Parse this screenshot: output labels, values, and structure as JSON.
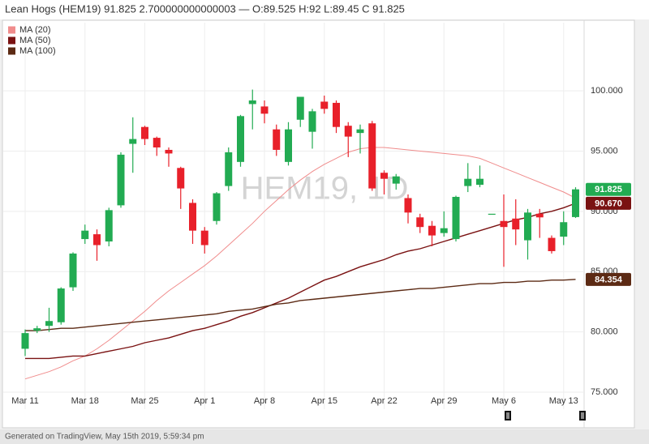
{
  "chart_data": {
    "type": "candlestick",
    "title": "Lean Hogs (HEM19) 91.825 2.700000000000003 — O:89.525 H:92 L:89.45 C 91.825",
    "watermark": "HEM19, 1D",
    "footer": "Generated on TradingView, May 15th 2019, 5:59:34 pm",
    "categories": [
      "Mar 11",
      null,
      null,
      null,
      null,
      "Mar 18",
      null,
      null,
      null,
      null,
      "Mar 25",
      null,
      null,
      null,
      null,
      "Apr 1",
      null,
      null,
      null,
      null,
      "Apr 8",
      null,
      null,
      null,
      null,
      "Apr 15",
      null,
      null,
      null,
      null,
      "Apr 22",
      null,
      null,
      null,
      null,
      "Apr 29",
      null,
      null,
      null,
      null,
      "May 6",
      null,
      null,
      null,
      null,
      "May 13",
      null
    ],
    "ohlc": {
      "up_color": "#22ab52",
      "down_color": "#e8202a",
      "open": [
        78.6,
        80.1,
        80.5,
        80.8,
        83.7,
        87.7,
        88.1,
        87.5,
        90.5,
        95.6,
        97.0,
        96.1,
        95.1,
        93.6,
        90.7,
        88.4,
        89.2,
        92.1,
        94.1,
        98.9,
        98.7,
        96.8,
        94.1,
        97.6,
        96.6,
        99.1,
        99.0,
        97.1,
        96.5,
        97.3,
        93.2,
        92.3,
        91.1,
        89.5,
        88.8,
        88.2,
        87.7,
        92.1,
        92.2,
        89.8,
        89.2,
        89.4,
        87.6,
        89.8,
        87.8,
        87.9,
        89.525
      ],
      "high": [
        80.2,
        80.5,
        82.0,
        83.7,
        86.6,
        88.9,
        88.5,
        90.3,
        94.9,
        97.8,
        97.1,
        96.2,
        95.3,
        93.7,
        91.0,
        88.7,
        91.6,
        95.3,
        98.0,
        100.1,
        99.2,
        97.2,
        97.4,
        99.5,
        98.5,
        99.6,
        99.2,
        97.4,
        97.2,
        97.5,
        93.4,
        93.1,
        91.4,
        89.8,
        89.2,
        90.0,
        91.3,
        94.0,
        93.8,
        89.8,
        91.4,
        91.0,
        90.2,
        90.2,
        88.0,
        90.0,
        92
      ],
      "low": [
        78.0,
        79.9,
        80.0,
        80.6,
        83.4,
        87.3,
        85.9,
        87.1,
        90.3,
        93.2,
        95.5,
        94.6,
        93.7,
        90.2,
        87.3,
        86.5,
        88.9,
        91.7,
        93.7,
        96.8,
        97.3,
        94.6,
        93.8,
        97.0,
        95.2,
        98.1,
        96.5,
        94.5,
        94.8,
        91.7,
        91.4,
        91.8,
        89.0,
        88.2,
        87.1,
        87.9,
        87.5,
        91.6,
        92.0,
        89.8,
        85.4,
        87.2,
        86.0,
        87.8,
        86.5,
        87.2,
        89.45
      ],
      "close": [
        79.9,
        80.3,
        80.9,
        83.6,
        86.5,
        88.4,
        87.2,
        90.1,
        94.7,
        96.0,
        96.0,
        95.3,
        94.8,
        91.9,
        88.4,
        87.2,
        91.5,
        94.9,
        97.9,
        99.2,
        98.1,
        95.1,
        96.8,
        99.5,
        98.3,
        98.5,
        97.0,
        96.2,
        96.8,
        91.9,
        92.7,
        92.9,
        89.9,
        88.7,
        88.0,
        88.6,
        91.2,
        92.7,
        92.7,
        89.8,
        88.7,
        88.5,
        89.9,
        89.5,
        86.7,
        89.1,
        91.825
      ]
    },
    "series": [
      {
        "name": "MA (20)",
        "color": "#f08c8c",
        "values": [
          76.1,
          76.4,
          76.7,
          77.1,
          77.6,
          78.0,
          78.6,
          79.3,
          80.1,
          80.9,
          81.7,
          82.6,
          83.4,
          84.1,
          84.8,
          85.5,
          86.3,
          87.2,
          88.1,
          89.0,
          90.0,
          90.9,
          91.8,
          92.6,
          93.3,
          93.9,
          94.4,
          94.9,
          95.2,
          95.3,
          95.3,
          95.2,
          95.1,
          95.0,
          94.9,
          94.8,
          94.7,
          94.6,
          94.4,
          94.0,
          93.6,
          93.2,
          92.8,
          92.4,
          92.0,
          91.6,
          91.1
        ]
      },
      {
        "name": "MA (50)",
        "color": "#7a1212",
        "values": [
          77.8,
          77.8,
          77.8,
          77.9,
          78.0,
          78.0,
          78.2,
          78.4,
          78.6,
          78.8,
          79.1,
          79.3,
          79.5,
          79.8,
          80.1,
          80.3,
          80.6,
          80.9,
          81.3,
          81.6,
          82.0,
          82.4,
          82.8,
          83.3,
          83.8,
          84.3,
          84.6,
          85.0,
          85.4,
          85.7,
          86.0,
          86.4,
          86.7,
          86.9,
          87.2,
          87.5,
          87.8,
          88.1,
          88.4,
          88.7,
          89.0,
          89.3,
          89.5,
          89.8,
          90.0,
          90.3,
          90.67
        ]
      },
      {
        "name": "MA (100)",
        "color": "#5c2a14",
        "values": [
          80.1,
          80.1,
          80.2,
          80.3,
          80.3,
          80.4,
          80.5,
          80.6,
          80.7,
          80.8,
          80.9,
          81.0,
          81.1,
          81.2,
          81.3,
          81.4,
          81.5,
          81.7,
          81.8,
          81.9,
          82.1,
          82.3,
          82.4,
          82.6,
          82.7,
          82.8,
          82.9,
          83.0,
          83.1,
          83.2,
          83.3,
          83.4,
          83.5,
          83.6,
          83.6,
          83.7,
          83.8,
          83.9,
          84.0,
          84.0,
          84.1,
          84.1,
          84.2,
          84.2,
          84.3,
          84.3,
          84.354
        ]
      }
    ],
    "price_labels": [
      {
        "value": 91.825,
        "label": "91.825",
        "color": "#22ab52"
      },
      {
        "value": 90.67,
        "label": "90.670",
        "color": "#7a1212"
      },
      {
        "value": 84.354,
        "label": "84.354",
        "color": "#5c2a14"
      }
    ],
    "ylim": [
      73.59,
      105.65
    ],
    "yticks": [
      {
        "value": 75,
        "label": "75.000"
      },
      {
        "value": 80,
        "label": "80.000"
      },
      {
        "value": 85,
        "label": "85.000"
      },
      {
        "value": 90,
        "label": "90.000"
      },
      {
        "value": 95,
        "label": "95.000"
      },
      {
        "value": 100,
        "label": "100.000"
      }
    ],
    "grid": true
  }
}
